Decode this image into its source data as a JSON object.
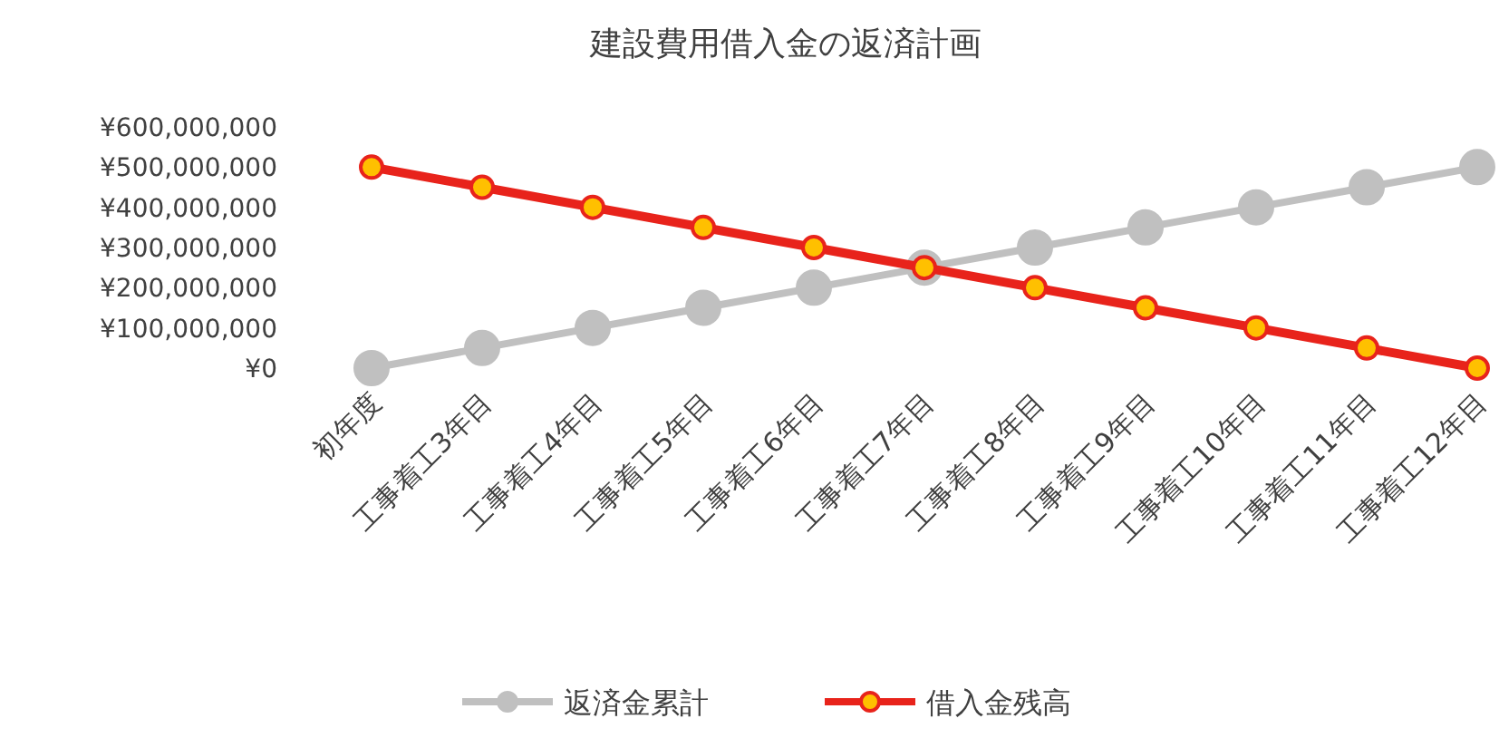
{
  "chart_data": {
    "type": "line",
    "title": "建設費用借入金の返済計画",
    "categories": [
      "初年度",
      "工事着工3年目",
      "工事着工4年目",
      "工事着工5年目",
      "工事着工6年目",
      "工事着工7年目",
      "工事着工8年目",
      "工事着工9年目",
      "工事着工10年目",
      "工事着工11年目",
      "工事着工12年目"
    ],
    "series": [
      {
        "name": "返済金累計",
        "color": "#c0c0c0",
        "values": [
          0,
          50000000,
          100000000,
          150000000,
          200000000,
          250000000,
          300000000,
          350000000,
          400000000,
          450000000,
          500000000
        ]
      },
      {
        "name": "借入金残高",
        "color": "#e8231b",
        "values": [
          500000000,
          450000000,
          400000000,
          350000000,
          300000000,
          250000000,
          200000000,
          150000000,
          100000000,
          50000000,
          0
        ]
      }
    ],
    "ylim": [
      0,
      600000000
    ],
    "yticks": [
      {
        "value": 0,
        "label": "¥0"
      },
      {
        "value": 100000000,
        "label": "¥100,000,000"
      },
      {
        "value": 200000000,
        "label": "¥200,000,000"
      },
      {
        "value": 300000000,
        "label": "¥300,000,000"
      },
      {
        "value": 400000000,
        "label": "¥400,000,000"
      },
      {
        "value": 500000000,
        "label": "¥500,000,000"
      },
      {
        "value": 600000000,
        "label": "¥600,000,000"
      }
    ],
    "grid": false,
    "legend": "bottom",
    "marker": "circle",
    "line_style": "solid"
  }
}
